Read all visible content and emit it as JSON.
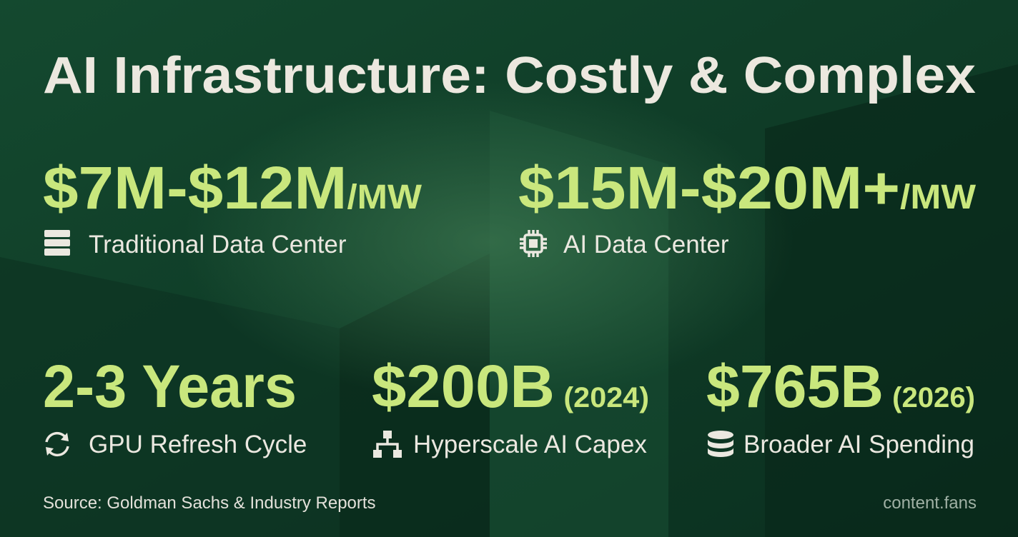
{
  "title": "AI Infrastructure: Costly & Complex",
  "stats": [
    {
      "value": "$7M-$12M",
      "unit": "/MW",
      "label": "Traditional Data Center"
    },
    {
      "value": "$15M-$20M+",
      "unit": "/MW",
      "label": "AI Data Center"
    },
    {
      "value": "2-3 Years",
      "label": "GPU Refresh Cycle"
    },
    {
      "value": "$200B",
      "unit": "(2024)",
      "label": "Hyperscale AI Capex"
    },
    {
      "value": "$765B",
      "unit": "(2026)",
      "label": "Broader AI Spending"
    }
  ],
  "source": "Source: Goldman Sachs & Industry Reports",
  "brand": "content.fans"
}
